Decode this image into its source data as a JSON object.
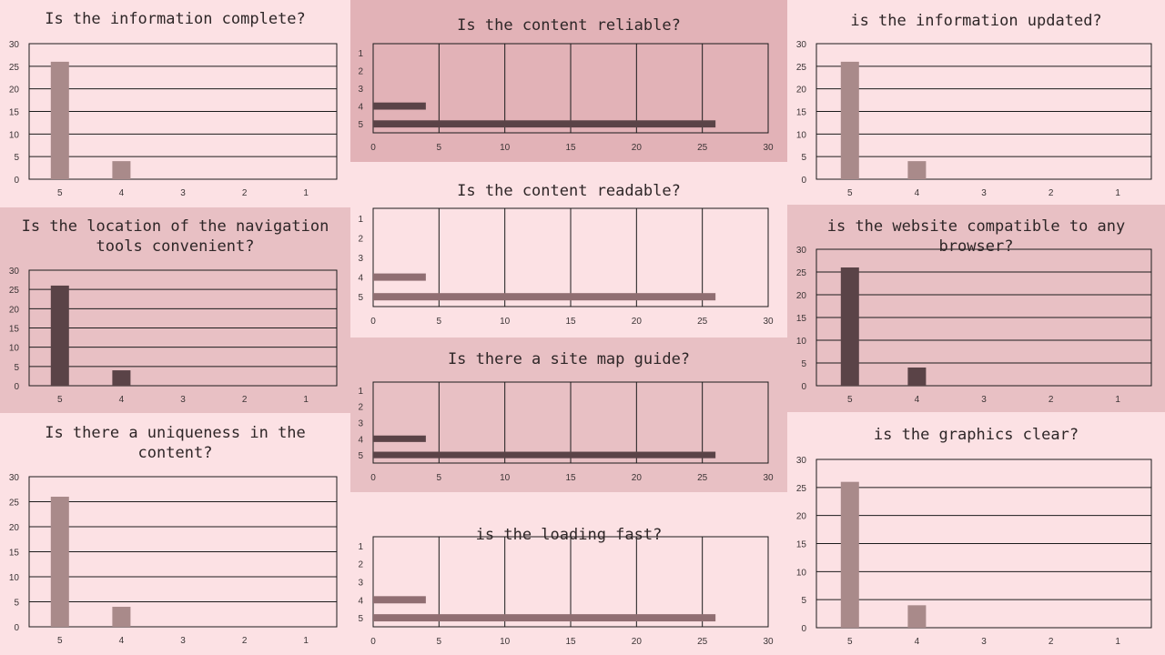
{
  "colors": {
    "light": "#a98a8a",
    "mid": "#906e72",
    "dark": "#5a4347"
  },
  "chart_data": [
    {
      "id": "c1",
      "type": "bar",
      "orientation": "vertical",
      "title": "Is the information complete?",
      "categories": [
        "5",
        "4",
        "3",
        "2",
        "1"
      ],
      "values": [
        26,
        4,
        0,
        0,
        0
      ],
      "ylim": [
        0,
        30
      ],
      "yticks": [
        0,
        5,
        10,
        15,
        20,
        25,
        30
      ],
      "color": "light",
      "grid": true
    },
    {
      "id": "c2",
      "type": "bar",
      "orientation": "horizontal",
      "title": "Is the content reliable?",
      "categories": [
        "1",
        "2",
        "3",
        "4",
        "5"
      ],
      "values": [
        0,
        0,
        0,
        4,
        26
      ],
      "xlim": [
        0,
        30
      ],
      "xticks": [
        0,
        5,
        10,
        15,
        20,
        25,
        30
      ],
      "color": "dark",
      "grid": true
    },
    {
      "id": "c3",
      "type": "bar",
      "orientation": "vertical",
      "title": "is the information updated?",
      "categories": [
        "5",
        "4",
        "3",
        "2",
        "1"
      ],
      "values": [
        26,
        4,
        0,
        0,
        0
      ],
      "ylim": [
        0,
        30
      ],
      "yticks": [
        0,
        5,
        10,
        15,
        20,
        25,
        30
      ],
      "color": "light",
      "grid": true
    },
    {
      "id": "c4",
      "type": "bar",
      "orientation": "vertical",
      "title": "Is the location of the navigation tools convenient?",
      "title_lines": [
        "Is the location of the navigation",
        "tools convenient?"
      ],
      "categories": [
        "5",
        "4",
        "3",
        "2",
        "1"
      ],
      "values": [
        26,
        4,
        0,
        0,
        0
      ],
      "ylim": [
        0,
        30
      ],
      "yticks": [
        0,
        5,
        10,
        15,
        20,
        25,
        30
      ],
      "color": "dark",
      "grid": true
    },
    {
      "id": "c5",
      "type": "bar",
      "orientation": "horizontal",
      "title": "Is the content readable?",
      "categories": [
        "1",
        "2",
        "3",
        "4",
        "5"
      ],
      "values": [
        0,
        0,
        0,
        4,
        26
      ],
      "xlim": [
        0,
        30
      ],
      "xticks": [
        0,
        5,
        10,
        15,
        20,
        25,
        30
      ],
      "color": "mid",
      "grid": true
    },
    {
      "id": "c6",
      "type": "bar",
      "orientation": "vertical",
      "title": "is the website compatible to any browser?",
      "categories": [
        "5",
        "4",
        "3",
        "2",
        "1"
      ],
      "values": [
        26,
        4,
        0,
        0,
        0
      ],
      "ylim": [
        0,
        30
      ],
      "yticks": [
        0,
        5,
        10,
        15,
        20,
        25,
        30
      ],
      "color": "dark",
      "grid": true
    },
    {
      "id": "c7",
      "type": "bar",
      "orientation": "vertical",
      "title": "Is there a uniqueness in the content?",
      "title_lines": [
        "Is there a uniqueness in the",
        "content?"
      ],
      "categories": [
        "5",
        "4",
        "3",
        "2",
        "1"
      ],
      "values": [
        26,
        4,
        0,
        0,
        0
      ],
      "ylim": [
        0,
        30
      ],
      "yticks": [
        0,
        5,
        10,
        15,
        20,
        25,
        30
      ],
      "color": "light",
      "grid": true
    },
    {
      "id": "c8",
      "type": "bar",
      "orientation": "horizontal",
      "title": "Is there a site map guide?",
      "categories": [
        "1",
        "2",
        "3",
        "4",
        "5"
      ],
      "values": [
        0,
        0,
        0,
        4,
        26
      ],
      "xlim": [
        0,
        30
      ],
      "xticks": [
        0,
        5,
        10,
        15,
        20,
        25,
        30
      ],
      "color": "dark",
      "grid": true
    },
    {
      "id": "c9",
      "type": "bar",
      "orientation": "vertical",
      "title": "is the graphics clear?",
      "categories": [
        "5",
        "4",
        "3",
        "2",
        "1"
      ],
      "values": [
        26,
        4,
        0,
        0,
        0
      ],
      "ylim": [
        0,
        30
      ],
      "yticks": [
        0,
        5,
        10,
        15,
        20,
        25,
        30
      ],
      "color": "light",
      "grid": true
    },
    {
      "id": "c10",
      "type": "bar",
      "orientation": "horizontal",
      "title": "is the loading fast?",
      "categories": [
        "1",
        "2",
        "3",
        "4",
        "5"
      ],
      "values": [
        0,
        0,
        0,
        4,
        26
      ],
      "xlim": [
        0,
        30
      ],
      "xticks": [
        0,
        5,
        10,
        15,
        20,
        25,
        30
      ],
      "color": "mid",
      "grid": true
    }
  ]
}
